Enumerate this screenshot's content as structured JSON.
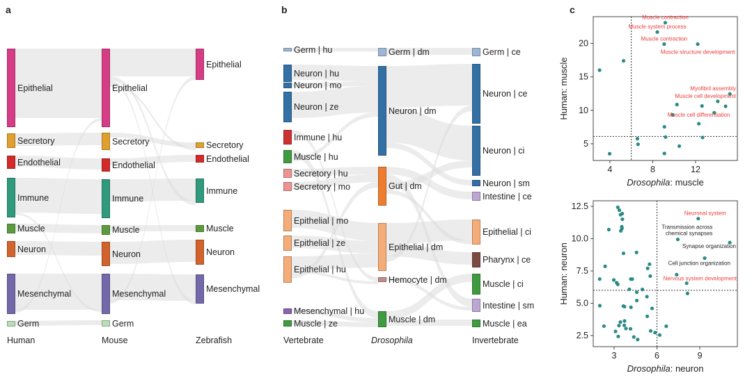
{
  "panels": {
    "a": "a",
    "b": "b",
    "c": "c"
  },
  "panel_a": {
    "columns": [
      "Human",
      "Mouse",
      "Zebrafish"
    ],
    "nodes": [
      [
        {
          "label": "Epithelial",
          "color": "#d63d86"
        },
        {
          "label": "Secretory",
          "color": "#dfa02f"
        },
        {
          "label": "Endothelial",
          "color": "#d32a2a"
        },
        {
          "label": "Immune",
          "color": "#2f9a7c"
        },
        {
          "label": "Muscle",
          "color": "#5c9a3e"
        },
        {
          "label": "Neuron",
          "color": "#d2632c"
        },
        {
          "label": "Mesenchymal",
          "color": "#7268aa"
        },
        {
          "label": "Germ",
          "color": "#b9ddb9"
        }
      ],
      [
        {
          "label": "Epithelial",
          "color": "#d63d86"
        },
        {
          "label": "Secretory",
          "color": "#dfa02f"
        },
        {
          "label": "Endothelial",
          "color": "#d32a2a"
        },
        {
          "label": "Immune",
          "color": "#2f9a7c"
        },
        {
          "label": "Muscle",
          "color": "#5c9a3e"
        },
        {
          "label": "Neuron",
          "color": "#d2632c"
        },
        {
          "label": "Mesenchymal",
          "color": "#7268aa"
        },
        {
          "label": "Germ",
          "color": "#b9ddb9"
        }
      ],
      [
        {
          "label": "Epithelial",
          "color": "#d63d86"
        },
        {
          "label": "Secretory",
          "color": "#dfa02f"
        },
        {
          "label": "Endothelial",
          "color": "#d32a2a"
        },
        {
          "label": "Immune",
          "color": "#2f9a7c"
        },
        {
          "label": "Muscle",
          "color": "#5c9a3e"
        },
        {
          "label": "Neuron",
          "color": "#d2632c"
        },
        {
          "label": "Mesenchymal",
          "color": "#7268aa"
        }
      ]
    ]
  },
  "panel_b": {
    "columns": [
      "Vertebrate",
      "Drosophila",
      "Invertebrate"
    ],
    "nodes": [
      [
        {
          "label": "Germ | hu",
          "color": "#9db6d6"
        },
        {
          "label": "Neuron | hu",
          "color": "#3270a6"
        },
        {
          "label": "Neuron | mo",
          "color": "#3270a6"
        },
        {
          "label": "Neuron | ze",
          "color": "#3270a6"
        },
        {
          "label": "Immune | hu",
          "color": "#cc3232"
        },
        {
          "label": "Muscle | hu",
          "color": "#3f9a40"
        },
        {
          "label": "Secretory | hu",
          "color": "#ec9494"
        },
        {
          "label": "Secretory | mo",
          "color": "#ec9494"
        },
        {
          "label": "Epithelial | mo",
          "color": "#f4ad78"
        },
        {
          "label": "Epithelial | ze",
          "color": "#f4ad78"
        },
        {
          "label": "Epithelial | hu",
          "color": "#f4ad78"
        },
        {
          "label": "Mesenchymal | hu",
          "color": "#8a62b0"
        },
        {
          "label": "Muscle | ze",
          "color": "#3f9a40"
        }
      ],
      [
        {
          "label": "Germ | dm",
          "color": "#9db6d6"
        },
        {
          "label": "Neuron | dm",
          "color": "#3270a6"
        },
        {
          "label": "Gut | dm",
          "color": "#ee7d30"
        },
        {
          "label": "Epithelial | dm",
          "color": "#f4ad78"
        },
        {
          "label": "Hemocyte | dm",
          "color": "#c08e8a"
        },
        {
          "label": "Muscle | dm",
          "color": "#3f9a40"
        }
      ],
      [
        {
          "label": "Germ | ce",
          "color": "#9db6d6"
        },
        {
          "label": "Neuron | ce",
          "color": "#3270a6"
        },
        {
          "label": "Neuron | ci",
          "color": "#3270a6"
        },
        {
          "label": "Neuron | sm",
          "color": "#3270a6"
        },
        {
          "label": "Intestine | ce",
          "color": "#bca6d2"
        },
        {
          "label": "Epithelial | ci",
          "color": "#f4ad78"
        },
        {
          "label": "Pharynx | ce",
          "color": "#7b4a42"
        },
        {
          "label": "Muscle | ci",
          "color": "#3f9a40"
        },
        {
          "label": "Intestine | sm",
          "color": "#bca6d2"
        },
        {
          "label": "Muscle | ea",
          "color": "#3f9a40"
        }
      ]
    ]
  },
  "chart_data": [
    {
      "type": "scatter",
      "xlabel_italic": "Drosophila",
      "xlabel_rest": ": muscle",
      "ylabel": "Human: muscle",
      "xlim": [
        2.45,
        15.9
      ],
      "ylim": [
        2.5,
        24.0
      ],
      "xticks": [
        4,
        8,
        12
      ],
      "yticks": [
        5,
        10,
        15,
        20
      ],
      "grid": false,
      "point_color": "#2a8a86",
      "thresholds": {
        "x": 6.0,
        "y": 6.1
      },
      "points": [
        [
          9.17,
          23.1
        ],
        [
          8.43,
          21.7
        ],
        [
          9.07,
          19.9
        ],
        [
          12.2,
          19.9
        ],
        [
          3.04,
          16.0
        ],
        [
          5.28,
          17.4
        ],
        [
          15.2,
          12.45
        ],
        [
          14.07,
          11.34
        ],
        [
          10.26,
          10.86
        ],
        [
          12.6,
          10.65
        ],
        [
          14.8,
          10.6
        ],
        [
          13.74,
          9.64
        ],
        [
          9.85,
          9.33
        ],
        [
          12.3,
          8.0
        ],
        [
          9.09,
          7.53
        ],
        [
          9.2,
          6.0
        ],
        [
          12.65,
          5.94
        ],
        [
          6.57,
          5.76
        ],
        [
          6.63,
          4.93
        ],
        [
          10.48,
          4.65
        ],
        [
          9.09,
          3.55
        ],
        [
          3.98,
          3.51
        ]
      ],
      "annotations": [
        {
          "text": "Muscle contraction",
          "x": 9.17,
          "y": 23.1,
          "color": "#e8403c"
        },
        {
          "text": "Muscle system process",
          "x": 8.43,
          "y": 21.7,
          "color": "#e8403c"
        },
        {
          "text": "Muscle contraction",
          "x": 9.07,
          "y": 19.9,
          "color": "#e8403c"
        },
        {
          "text": "Muscle structure development",
          "x": 12.2,
          "y": 19.9,
          "color": "#e8403c"
        },
        {
          "text": "Myofibril assembly",
          "x": 15.2,
          "y": 12.45,
          "color": "#e8403c"
        },
        {
          "text": "Muscle cell development",
          "x": 14.07,
          "y": 11.34,
          "color": "#e8403c"
        },
        {
          "text": "Muscle cell differentiation",
          "x": 12.3,
          "y": 8.0,
          "color": "#e8403c"
        }
      ]
    },
    {
      "type": "scatter",
      "xlabel_italic": "Drosophila",
      "xlabel_rest": ": neuron",
      "ylabel": "Human: neuron",
      "xlim": [
        1.54,
        11.63
      ],
      "ylim": [
        1.64,
        12.93
      ],
      "xticks": [
        3,
        6,
        9
      ],
      "yticks": [
        2.5,
        5.0,
        7.5,
        10.0,
        12.5
      ],
      "grid": false,
      "point_color": "#2a8a86",
      "thresholds": {
        "x": 6.0,
        "y": 6.0
      },
      "points": [
        [
          3.26,
          12.43
        ],
        [
          3.37,
          12.2
        ],
        [
          3.57,
          11.94
        ],
        [
          3.45,
          11.85
        ],
        [
          3.58,
          11.5
        ],
        [
          3.54,
          10.92
        ],
        [
          3.55,
          10.78
        ],
        [
          3.47,
          10.6
        ],
        [
          2.63,
          10.7
        ],
        [
          3.66,
          8.86
        ],
        [
          4.57,
          8.93
        ],
        [
          2.37,
          7.86
        ],
        [
          5.48,
          8.02
        ],
        [
          5.35,
          7.7
        ],
        [
          5.53,
          7.1
        ],
        [
          1.99,
          6.87
        ],
        [
          2.98,
          6.8
        ],
        [
          3.18,
          6.59
        ],
        [
          3.26,
          6.46
        ],
        [
          4.17,
          6.87
        ],
        [
          4.27,
          6.87
        ],
        [
          4.07,
          6.08
        ],
        [
          4.98,
          6.07
        ],
        [
          4.59,
          5.85
        ],
        [
          5.3,
          5.51
        ],
        [
          4.59,
          5.21
        ],
        [
          2.0,
          4.81
        ],
        [
          3.65,
          4.78
        ],
        [
          3.73,
          4.74
        ],
        [
          4.18,
          4.69
        ],
        [
          5.66,
          4.6
        ],
        [
          5.32,
          3.99
        ],
        [
          3.73,
          3.63
        ],
        [
          3.44,
          3.54
        ],
        [
          2.29,
          3.23
        ],
        [
          3.34,
          3.27
        ],
        [
          3.71,
          3.29
        ],
        [
          3.83,
          3.04
        ],
        [
          4.15,
          3.02
        ],
        [
          3.1,
          2.82
        ],
        [
          3.29,
          2.43
        ],
        [
          4.38,
          2.39
        ],
        [
          4.65,
          2.19
        ],
        [
          5.56,
          2.86
        ],
        [
          5.87,
          2.73
        ],
        [
          6.19,
          2.54
        ],
        [
          6.65,
          3.22
        ],
        [
          8.89,
          11.55
        ],
        [
          7.46,
          9.94
        ],
        [
          11.1,
          9.7
        ],
        [
          9.34,
          8.49
        ],
        [
          7.38,
          7.21
        ],
        [
          8.08,
          6.55
        ],
        [
          8.14,
          5.76
        ]
      ],
      "annotations": [
        {
          "text": "Neuronal system",
          "x": 8.89,
          "y": 11.55,
          "color": "#e8403c"
        },
        {
          "text": "Transmission across",
          "text2": "chemical synapses",
          "x": 7.46,
          "y": 9.94,
          "color": "#222222"
        },
        {
          "text": "Synapse organization",
          "x": 11.1,
          "y": 9.7,
          "color": "#222222"
        },
        {
          "text": "Cell junction organization",
          "x": 9.34,
          "y": 8.49,
          "color": "#222222"
        },
        {
          "text": "Nervous system development",
          "x": 8.08,
          "y": 6.55,
          "color": "#e8403c"
        }
      ]
    }
  ]
}
